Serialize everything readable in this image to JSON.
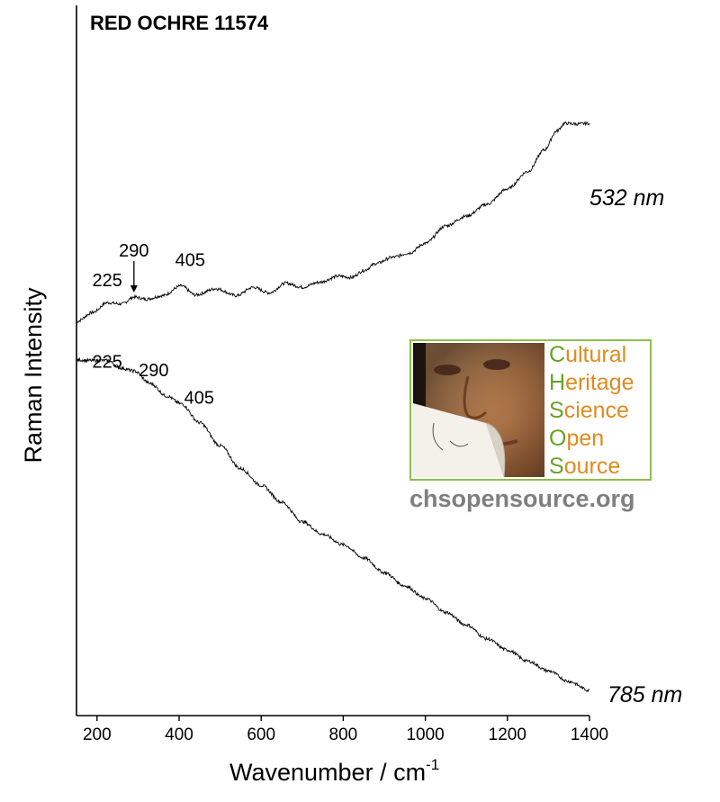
{
  "chart_data": {
    "type": "line",
    "title": "RED OCHRE 11574",
    "xlabel": "Wavenumber / cm",
    "xlabel_superscript": "-1",
    "ylabel": "Raman Intensity",
    "xlim": [
      150,
      1400
    ],
    "ylim": [
      0,
      100
    ],
    "y_ticks_shown": false,
    "grid": false,
    "x_ticks": [
      200,
      400,
      600,
      800,
      1000,
      1200,
      1400
    ],
    "x_tick_labels": [
      "200",
      "400",
      "600",
      "800",
      "1000",
      "1200",
      "1400"
    ],
    "series": [
      {
        "name": "532 nm",
        "color": "#000000",
        "x": [
          150,
          190,
          225,
          260,
          290,
          320,
          360,
          405,
          440,
          490,
          540,
          580,
          620,
          660,
          700,
          740,
          790,
          820,
          850,
          880,
          920,
          960,
          1000,
          1050,
          1100,
          1150,
          1200,
          1250,
          1290,
          1320,
          1340,
          1370,
          1400
        ],
        "y": [
          56.5,
          57.8,
          59.2,
          59.0,
          60.0,
          59.7,
          60.2,
          61.6,
          60.3,
          61.2,
          60.2,
          61.4,
          60.6,
          62.0,
          61.4,
          62.1,
          63.0,
          62.8,
          63.8,
          64.8,
          65.7,
          66.3,
          67.7,
          70.2,
          71.6,
          73.3,
          75.5,
          78.0,
          81.1,
          83.8,
          84.9,
          84.8,
          84.9
        ]
      },
      {
        "name": "785 nm",
        "color": "#000000",
        "x": [
          150,
          180,
          225,
          260,
          290,
          330,
          370,
          405,
          450,
          500,
          550,
          600,
          650,
          700,
          750,
          800,
          850,
          900,
          950,
          1000,
          1050,
          1100,
          1150,
          1200,
          1250,
          1300,
          1350,
          1400
        ],
        "y": [
          51.0,
          50.9,
          50.9,
          49.8,
          49.4,
          47.6,
          45.8,
          44.7,
          42.0,
          38.7,
          35.4,
          33.0,
          30.6,
          27.8,
          26.0,
          24.5,
          22.6,
          20.5,
          18.6,
          16.8,
          14.8,
          13.0,
          11.0,
          9.4,
          7.8,
          6.4,
          4.9,
          3.6
        ]
      }
    ],
    "annotations": [
      {
        "series": 0,
        "text": "225",
        "x": 225
      },
      {
        "series": 0,
        "text": "290",
        "x": 290,
        "arrow": true
      },
      {
        "series": 0,
        "text": "405",
        "x": 405
      },
      {
        "series": 1,
        "text": "225",
        "x": 225
      },
      {
        "series": 1,
        "text": "290",
        "x": 290
      },
      {
        "series": 1,
        "text": "405",
        "x": 405
      }
    ]
  },
  "logo": {
    "words": [
      "Cultural",
      "Heritage",
      "Science",
      "Open",
      "Source"
    ],
    "first_letter_color": "#6aa121",
    "rest_color": "#e08a1e",
    "url": "chsopensource.org",
    "url_color": "#7f7f7f",
    "border_color": "#8cbf4a",
    "image": "portrait-with-peeling-corner"
  }
}
